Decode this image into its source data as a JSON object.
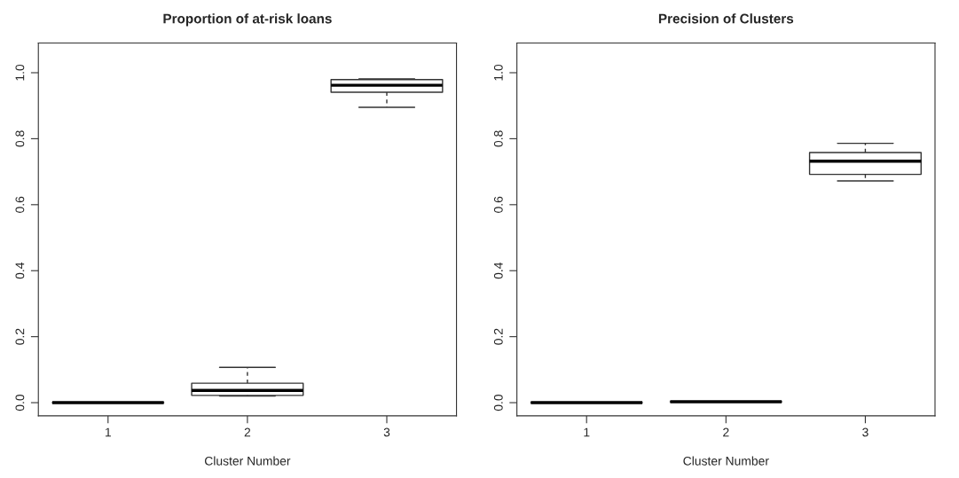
{
  "chart_data": [
    {
      "type": "box",
      "title": "Proportion of at-risk loans",
      "xlabel": "Cluster Number",
      "categories": [
        "1",
        "2",
        "3"
      ],
      "ylim": [
        -0.04,
        1.09
      ],
      "yticks": [
        {
          "value": 0,
          "label": "0.0"
        },
        {
          "value": 0.2,
          "label": "0.2"
        },
        {
          "value": 0.4,
          "label": "0.4"
        },
        {
          "value": 0.6,
          "label": "0.6"
        },
        {
          "value": 0.8,
          "label": "0.8"
        },
        {
          "value": 1,
          "label": "1.0"
        }
      ],
      "boxes": [
        {
          "low": 0,
          "q1": 0,
          "median": 0,
          "q3": 0,
          "high": 0
        },
        {
          "low": 0.02,
          "q1": 0.022,
          "median": 0.037,
          "q3": 0.059,
          "high": 0.107
        },
        {
          "low": 0.895,
          "q1": 0.941,
          "median": 0.962,
          "q3": 0.979,
          "high": 0.981
        }
      ]
    },
    {
      "type": "box",
      "title": "Precision of Clusters",
      "xlabel": "Cluster Number",
      "categories": [
        "1",
        "2",
        "3"
      ],
      "ylim": [
        -0.04,
        1.09
      ],
      "yticks": [
        {
          "value": 0,
          "label": "0.0"
        },
        {
          "value": 0.2,
          "label": "0.2"
        },
        {
          "value": 0.4,
          "label": "0.4"
        },
        {
          "value": 0.6,
          "label": "0.6"
        },
        {
          "value": 0.8,
          "label": "0.8"
        },
        {
          "value": 1,
          "label": "1.0"
        }
      ],
      "boxes": [
        {
          "low": 0,
          "q1": 0,
          "median": 0,
          "q3": 0,
          "high": 0
        },
        {
          "low": 0.003,
          "q1": 0.003,
          "median": 0.003,
          "q3": 0.003,
          "high": 0.003
        },
        {
          "low": 0.672,
          "q1": 0.692,
          "median": 0.732,
          "q3": 0.758,
          "high": 0.786
        }
      ]
    }
  ]
}
